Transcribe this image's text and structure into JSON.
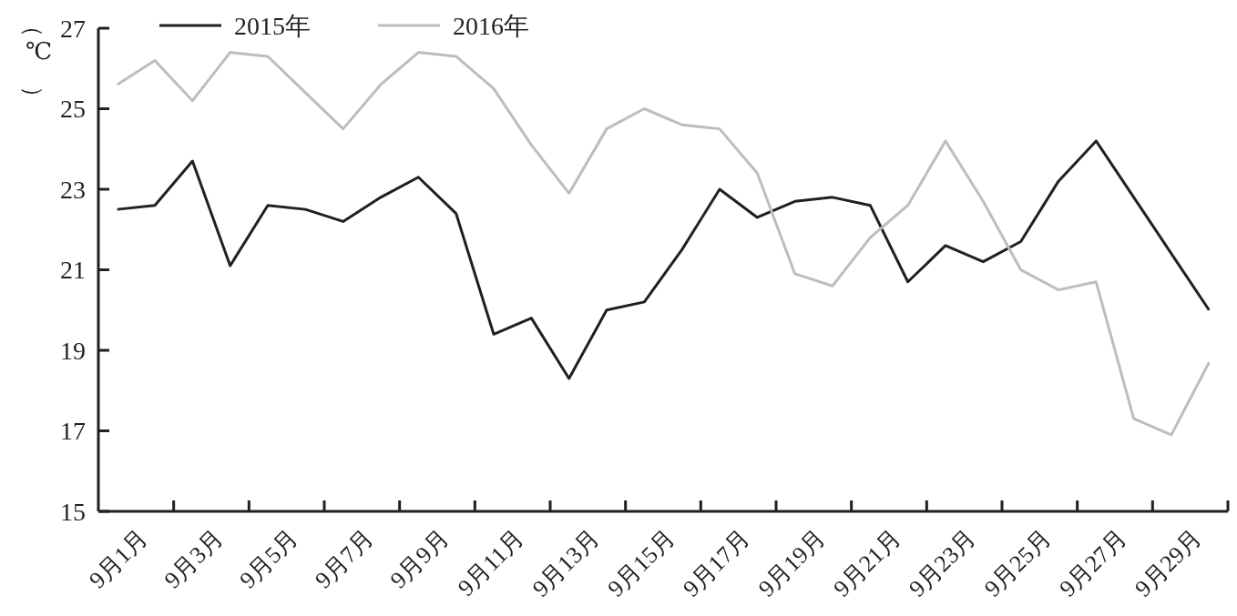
{
  "chart_data": {
    "type": "line",
    "ylabel": "（℃）",
    "categories": [
      "9月1月",
      null,
      "9月3月",
      null,
      "9月5月",
      null,
      "9月7月",
      null,
      "9月9月",
      null,
      "9月11月",
      null,
      "9月13月",
      null,
      "9月15月",
      null,
      "9月17月",
      null,
      "9月19月",
      null,
      "9月21月",
      null,
      "9月23月",
      null,
      "9月25月",
      null,
      "9月27月",
      null,
      "9月29月",
      null
    ],
    "series": [
      {
        "name": "2015年",
        "color": "#231f20",
        "values": [
          22.5,
          22.6,
          23.7,
          21.1,
          22.6,
          22.5,
          22.2,
          22.8,
          23.3,
          22.4,
          19.4,
          19.8,
          18.3,
          20.0,
          20.2,
          21.5,
          23.0,
          22.3,
          22.7,
          22.8,
          22.6,
          20.7,
          21.6,
          21.2,
          21.7,
          23.2,
          24.2,
          22.8,
          21.4,
          20.0
        ]
      },
      {
        "name": "2016年",
        "color": "#bcbdc0",
        "values": [
          25.6,
          26.2,
          25.2,
          26.4,
          26.3,
          25.4,
          24.5,
          25.6,
          26.4,
          26.3,
          25.5,
          24.1,
          22.9,
          24.5,
          25.0,
          24.6,
          24.5,
          23.4,
          20.9,
          20.6,
          21.8,
          22.6,
          24.2,
          22.7,
          21.0,
          20.5,
          20.7,
          17.3,
          16.9,
          18.7
        ]
      }
    ],
    "ylim": [
      15,
      27
    ],
    "yticks": [
      15,
      17,
      19,
      21,
      23,
      25,
      27
    ],
    "legend": "top",
    "grid": false,
    "marker": "none",
    "line_style": "solid"
  }
}
